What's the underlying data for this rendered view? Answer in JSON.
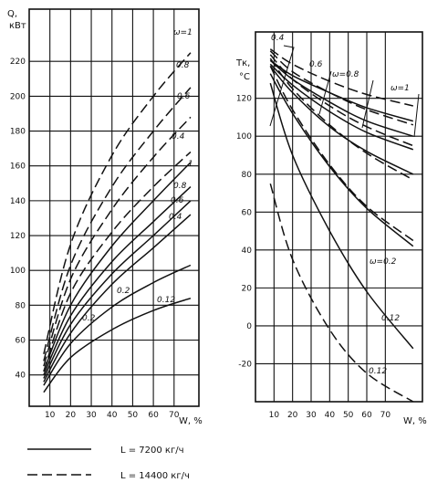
{
  "chart_data": [
    {
      "type": "line",
      "ylabel": "Q, кВт",
      "xlabel": "W, %",
      "xlim": [
        0,
        82
      ],
      "ylim": [
        22,
        250
      ],
      "x_ticks": [
        "10",
        "20",
        "30",
        "40",
        "50",
        "60",
        "70"
      ],
      "y_ticks": [
        "40",
        "60",
        "80",
        "100",
        "120",
        "140",
        "160",
        "180",
        "200",
        "220"
      ],
      "curve_labels": [
        "ω=1",
        "0.8",
        "0.6",
        "0.4",
        "1",
        "0.8",
        "0.6",
        "0.4",
        "0.2",
        "0.12",
        "0.2"
      ],
      "series": [
        {
          "style": "dashed",
          "x": [
            7,
            20,
            40,
            60,
            78
          ],
          "y": [
            52,
            115,
            166,
            200,
            225
          ]
        },
        {
          "style": "dashed",
          "x": [
            7,
            20,
            40,
            60,
            78
          ],
          "y": [
            48,
            103,
            148,
            180,
            205
          ]
        },
        {
          "style": "dashed",
          "x": [
            7,
            20,
            40,
            60,
            78
          ],
          "y": [
            45,
            95,
            135,
            165,
            188
          ]
        },
        {
          "style": "dashed",
          "x": [
            7,
            20,
            40,
            60,
            78
          ],
          "y": [
            42,
            87,
            122,
            148,
            168
          ]
        },
        {
          "style": "solid",
          "x": [
            7,
            20,
            40,
            60,
            78
          ],
          "y": [
            42,
            80,
            114,
            140,
            162
          ]
        },
        {
          "style": "solid",
          "x": [
            7,
            20,
            40,
            60,
            78
          ],
          "y": [
            40,
            74,
            105,
            128,
            148
          ]
        },
        {
          "style": "solid",
          "x": [
            7,
            20,
            40,
            60,
            78
          ],
          "y": [
            38,
            69,
            98,
            120,
            140
          ]
        },
        {
          "style": "solid",
          "x": [
            7,
            20,
            40,
            60,
            78
          ],
          "y": [
            36,
            64,
            92,
            113,
            132
          ]
        },
        {
          "style": "solid",
          "x": [
            7,
            20,
            40,
            60,
            78
          ],
          "y": [
            34,
            58,
            79,
            93,
            103
          ]
        },
        {
          "style": "solid",
          "x": [
            7,
            20,
            40,
            60,
            78
          ],
          "y": [
            30,
            50,
            66,
            77,
            84
          ]
        }
      ]
    },
    {
      "type": "line",
      "ylabel": "Tк, °C",
      "xlabel": "W, %",
      "xlim": [
        0,
        90
      ],
      "ylim": [
        -40,
        155
      ],
      "x_ticks": [
        "10",
        "20",
        "30",
        "40",
        "50",
        "60",
        "70"
      ],
      "y_ticks": [
        "120",
        "100",
        "80",
        "60",
        "40",
        "20",
        "0",
        "-20"
      ],
      "curve_labels": [
        "0.4",
        "0.6",
        "ω=0.8",
        "ω=1",
        "ω=0.2",
        "0.12",
        "0.12"
      ],
      "series": [
        {
          "style": "solid",
          "x": [
            8,
            20,
            40,
            60,
            85
          ],
          "y": [
            140,
            132,
            123,
            115,
            108
          ]
        },
        {
          "style": "solid",
          "x": [
            8,
            20,
            40,
            60,
            85
          ],
          "y": [
            140,
            130,
            118,
            108,
            100
          ]
        },
        {
          "style": "solid",
          "x": [
            8,
            20,
            40,
            60,
            85
          ],
          "y": [
            138,
            127,
            113,
            102,
            93
          ]
        },
        {
          "style": "solid",
          "x": [
            8,
            20,
            40,
            60,
            85
          ],
          "y": [
            137,
            123,
            105,
            92,
            80
          ]
        },
        {
          "style": "solid",
          "x": [
            8,
            20,
            40,
            60,
            85
          ],
          "y": [
            133,
            112,
            84,
            62,
            42
          ]
        },
        {
          "style": "solid",
          "x": [
            8,
            20,
            40,
            60,
            85
          ],
          "y": [
            128,
            90,
            50,
            18,
            -12
          ]
        },
        {
          "style": "dashed",
          "x": [
            8,
            20,
            40,
            60,
            85
          ],
          "y": [
            146,
            138,
            129,
            122,
            116
          ]
        },
        {
          "style": "dashed",
          "x": [
            8,
            20,
            40,
            60,
            85
          ],
          "y": [
            145,
            134,
            123,
            114,
            106
          ]
        },
        {
          "style": "dashed",
          "x": [
            8,
            20,
            40,
            60,
            85
          ],
          "y": [
            143,
            130,
            116,
            105,
            95
          ]
        },
        {
          "style": "dashed",
          "x": [
            8,
            20,
            40,
            60,
            85
          ],
          "y": [
            141,
            125,
            106,
            91,
            77
          ]
        },
        {
          "style": "dashed",
          "x": [
            8,
            20,
            40,
            60,
            85
          ],
          "y": [
            137,
            114,
            85,
            63,
            45
          ]
        },
        {
          "style": "dashed",
          "x": [
            8,
            20,
            40,
            60,
            85
          ],
          "y": [
            75,
            35,
            -2,
            -25,
            -40
          ]
        }
      ]
    }
  ],
  "legend": [
    {
      "style": "solid",
      "label": "L = 7200 кг/ч"
    },
    {
      "style": "dashed",
      "label": "L = 14400 кг/ч"
    }
  ]
}
